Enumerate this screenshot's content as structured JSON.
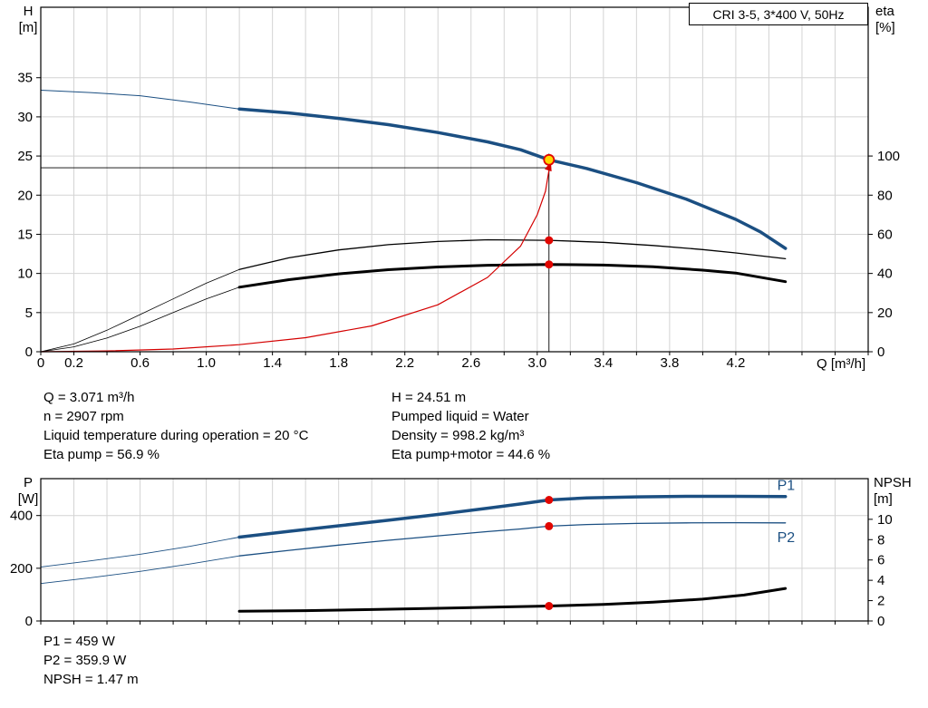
{
  "title_box": "CRI 3-5, 3*400 V, 50Hz",
  "colors": {
    "curve_blue": "#1b4f82",
    "marker_red": "#e10600",
    "duty_yellow": "#ffd800",
    "grid": "#d4d4d4"
  },
  "info_top": {
    "left": [
      "Q = 3.071 m³/h",
      "n = 2907 rpm",
      "Liquid temperature during operation = 20 °C",
      "Eta pump = 56.9 %"
    ],
    "right": [
      "H = 24.51 m",
      "Pumped liquid = Water",
      "Density = 998.2 kg/m³",
      "Eta pump+motor = 44.6 %"
    ]
  },
  "info_bottom": [
    "P1 = 459 W",
    "P2 = 359.9 W",
    "NPSH = 1.47 m"
  ],
  "chart_data": [
    {
      "type": "line",
      "title": "CRI 3-5, 3*400 V, 50Hz",
      "xlabel": "Q [m³/h]",
      "x_axis": {
        "min": 0,
        "max": 5.0,
        "grid_step": 0.2,
        "tick_labels": [
          {
            "v": 0,
            "t": "0"
          },
          {
            "v": 0.2,
            "t": "0.2"
          },
          {
            "v": 0.6,
            "t": "0.6"
          },
          {
            "v": 1.0,
            "t": "1.0"
          },
          {
            "v": 1.4,
            "t": "1.4"
          },
          {
            "v": 1.8,
            "t": "1.8"
          },
          {
            "v": 2.2,
            "t": "2.2"
          },
          {
            "v": 2.6,
            "t": "2.6"
          },
          {
            "v": 3.0,
            "t": "3.0"
          },
          {
            "v": 3.4,
            "t": "3.4"
          },
          {
            "v": 3.8,
            "t": "3.8"
          },
          {
            "v": 4.2,
            "t": "4.2"
          }
        ]
      },
      "y_left": {
        "label": "H",
        "unit": "[m]",
        "min": 0,
        "max": 44,
        "ticks": [
          0,
          5,
          10,
          15,
          20,
          25,
          30,
          35
        ]
      },
      "y_right": {
        "label": "eta",
        "unit": "[%]",
        "min": 0,
        "max": 176,
        "ticks": [
          0,
          20,
          40,
          60,
          80,
          100
        ]
      },
      "duty_point": {
        "q": 3.071,
        "h": 24.51,
        "eta_pump": 56.9,
        "eta_pump_motor": 44.6
      },
      "series": [
        {
          "name": "head-curve-extension",
          "axis": "left",
          "color": "#1b4f82",
          "width": 1,
          "points": [
            [
              0,
              33.4
            ],
            [
              0.3,
              33.1
            ],
            [
              0.6,
              32.7
            ],
            [
              0.9,
              31.9
            ],
            [
              1.2,
              31.0
            ]
          ]
        },
        {
          "name": "head-curve",
          "axis": "left",
          "color": "#1b4f82",
          "width": 3.5,
          "points": [
            [
              1.2,
              31.0
            ],
            [
              1.5,
              30.5
            ],
            [
              1.8,
              29.8
            ],
            [
              2.1,
              29.0
            ],
            [
              2.4,
              28.0
            ],
            [
              2.7,
              26.8
            ],
            [
              2.9,
              25.8
            ],
            [
              3.071,
              24.51
            ],
            [
              3.3,
              23.4
            ],
            [
              3.6,
              21.6
            ],
            [
              3.9,
              19.5
            ],
            [
              4.2,
              16.9
            ],
            [
              4.35,
              15.3
            ],
            [
              4.5,
              13.2
            ]
          ]
        },
        {
          "name": "eta-pump-extension",
          "axis": "right",
          "color": "#000000",
          "width": 0.8,
          "points": [
            [
              0,
              0
            ],
            [
              0.2,
              4
            ],
            [
              0.4,
              11
            ],
            [
              0.6,
              19
            ],
            [
              0.8,
              27
            ],
            [
              1.0,
              35
            ],
            [
              1.2,
              42
            ]
          ]
        },
        {
          "name": "eta-pump-curve",
          "axis": "right",
          "color": "#000000",
          "width": 1.3,
          "points": [
            [
              1.2,
              42
            ],
            [
              1.5,
              48
            ],
            [
              1.8,
              52
            ],
            [
              2.1,
              54.7
            ],
            [
              2.4,
              56.3
            ],
            [
              2.7,
              57.2
            ],
            [
              3.071,
              56.9
            ],
            [
              3.4,
              55.9
            ],
            [
              3.7,
              54.3
            ],
            [
              4.0,
              52.2
            ],
            [
              4.2,
              50.5
            ],
            [
              4.5,
              47.5
            ]
          ]
        },
        {
          "name": "eta-pump-motor-extension",
          "axis": "right",
          "color": "#000000",
          "width": 0.8,
          "points": [
            [
              0,
              0
            ],
            [
              0.2,
              2.5
            ],
            [
              0.4,
              7
            ],
            [
              0.6,
              13
            ],
            [
              0.8,
              20
            ],
            [
              1.0,
              27
            ],
            [
              1.2,
              33
            ]
          ]
        },
        {
          "name": "eta-pump-motor-curve",
          "axis": "right",
          "color": "#000000",
          "width": 3,
          "points": [
            [
              1.2,
              33
            ],
            [
              1.5,
              36.8
            ],
            [
              1.8,
              39.8
            ],
            [
              2.1,
              41.9
            ],
            [
              2.4,
              43.3
            ],
            [
              2.7,
              44.2
            ],
            [
              3.071,
              44.6
            ],
            [
              3.4,
              44.3
            ],
            [
              3.7,
              43.4
            ],
            [
              4.0,
              41.7
            ],
            [
              4.2,
              40.2
            ],
            [
              4.5,
              35.8
            ]
          ]
        },
        {
          "name": "system-curve",
          "axis": "left",
          "color": "#d40000",
          "width": 1.2,
          "points": [
            [
              0,
              0
            ],
            [
              0.4,
              0.1
            ],
            [
              0.8,
              0.35
            ],
            [
              1.2,
              0.9
            ],
            [
              1.6,
              1.8
            ],
            [
              2.0,
              3.3
            ],
            [
              2.4,
              6.0
            ],
            [
              2.7,
              9.5
            ],
            [
              2.9,
              13.5
            ],
            [
              3.0,
              17.5
            ],
            [
              3.05,
              20.5
            ],
            [
              3.071,
              23.2
            ]
          ]
        }
      ],
      "crosshair": {
        "x": 3.071,
        "h_line": 23.5,
        "v_top": 25.3
      },
      "arrow": {
        "x": 3.071,
        "y": 23.5
      },
      "markers": [
        {
          "type": "duty",
          "axis": "left",
          "x": 3.071,
          "y": 24.51
        },
        {
          "type": "dot",
          "axis": "right",
          "x": 3.071,
          "y": 56.9
        },
        {
          "type": "dot",
          "axis": "right",
          "x": 3.071,
          "y": 44.6
        }
      ],
      "labels": []
    },
    {
      "type": "line",
      "title": "",
      "xlabel": "",
      "x_axis": {
        "min": 0,
        "max": 5.0,
        "grid_step": 0.2,
        "tick_labels": []
      },
      "y_left": {
        "label": "P",
        "unit": "[W]",
        "min": 0,
        "max": 540,
        "ticks": [
          0,
          200,
          400
        ]
      },
      "y_right": {
        "label": "NPSH",
        "unit": "[m]",
        "min": 0,
        "max": 14,
        "ticks": [
          0,
          2,
          4,
          6,
          8,
          10
        ]
      },
      "duty_point": {
        "q": 3.071,
        "p1_w": 459,
        "p2_w": 359.9,
        "npsh_m": 1.47
      },
      "series": [
        {
          "name": "p1-extension",
          "axis": "left",
          "color": "#1b4f82",
          "width": 0.9,
          "points": [
            [
              0,
              205
            ],
            [
              0.3,
              228
            ],
            [
              0.6,
              253
            ],
            [
              0.9,
              283
            ],
            [
              1.2,
              318
            ]
          ]
        },
        {
          "name": "p1-curve",
          "axis": "left",
          "color": "#1b4f82",
          "width": 3.5,
          "points": [
            [
              1.2,
              318
            ],
            [
              1.5,
              340
            ],
            [
              1.8,
              361
            ],
            [
              2.1,
              382
            ],
            [
              2.4,
              404
            ],
            [
              2.7,
              428
            ],
            [
              2.9,
              444
            ],
            [
              3.071,
              459
            ],
            [
              3.3,
              467
            ],
            [
              3.6,
              471
            ],
            [
              3.9,
              473
            ],
            [
              4.2,
              473
            ],
            [
              4.5,
              472
            ]
          ]
        },
        {
          "name": "p2-extension",
          "axis": "left",
          "color": "#1b4f82",
          "width": 0.9,
          "points": [
            [
              0,
              142
            ],
            [
              0.3,
              164
            ],
            [
              0.6,
              188
            ],
            [
              0.9,
              216
            ],
            [
              1.2,
              247
            ]
          ]
        },
        {
          "name": "p2-curve",
          "axis": "left",
          "color": "#1b4f82",
          "width": 1.3,
          "points": [
            [
              1.2,
              247
            ],
            [
              1.5,
              268
            ],
            [
              1.8,
              288
            ],
            [
              2.1,
              306
            ],
            [
              2.4,
              323
            ],
            [
              2.7,
              339
            ],
            [
              2.9,
              349
            ],
            [
              3.071,
              359.9
            ],
            [
              3.3,
              366
            ],
            [
              3.6,
              370
            ],
            [
              3.9,
              372
            ],
            [
              4.2,
              373
            ],
            [
              4.5,
              372
            ]
          ]
        },
        {
          "name": "npsh-curve",
          "axis": "right",
          "color": "#000000",
          "width": 3,
          "points": [
            [
              1.2,
              0.95
            ],
            [
              1.6,
              1.02
            ],
            [
              2.0,
              1.12
            ],
            [
              2.4,
              1.25
            ],
            [
              2.8,
              1.38
            ],
            [
              3.071,
              1.47
            ],
            [
              3.4,
              1.62
            ],
            [
              3.7,
              1.85
            ],
            [
              4.0,
              2.15
            ],
            [
              4.25,
              2.55
            ],
            [
              4.5,
              3.2
            ]
          ]
        }
      ],
      "markers": [
        {
          "type": "dot",
          "axis": "left",
          "x": 3.071,
          "y": 459
        },
        {
          "type": "dot",
          "axis": "left",
          "x": 3.071,
          "y": 359.9
        },
        {
          "type": "dot",
          "axis": "right",
          "x": 3.071,
          "y": 1.47
        }
      ],
      "labels": [
        {
          "text": "P1",
          "axis": "left",
          "x": 4.45,
          "y": 497,
          "color": "#1b4f82"
        },
        {
          "text": "P2",
          "axis": "left",
          "x": 4.45,
          "y": 300,
          "color": "#1b4f82"
        }
      ]
    }
  ]
}
